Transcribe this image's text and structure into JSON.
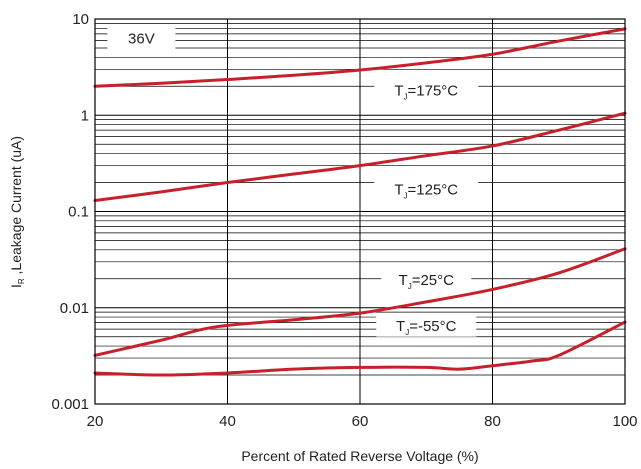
{
  "chart_data": {
    "type": "line",
    "title": "",
    "xlabel": "Percent of Rated Reverse Voltage (%)",
    "ylabel": {
      "main": "I",
      "sub": "R",
      "rest": " ,Leakage Current  (uA)"
    },
    "xlim": [
      20,
      100
    ],
    "ylim": [
      0.001,
      10
    ],
    "yscale": "log",
    "grid": true,
    "x_ticks": [
      20,
      40,
      60,
      80,
      100
    ],
    "x_tick_labels": [
      "20",
      "40",
      "60",
      "80",
      "100"
    ],
    "y_ticks": [
      0.001,
      0.01,
      0.1,
      1,
      10
    ],
    "y_tick_labels": [
      "0.001",
      "0.01",
      "0.1",
      "1",
      "10"
    ],
    "line_color": "#c8202a",
    "annotations": [
      {
        "key": "voltage",
        "text": "36V",
        "x": 27,
        "y": 6.3
      },
      {
        "key": "tj175",
        "main": "T",
        "sub": "J",
        "rest": "=175°C",
        "x": 70,
        "y": 1.8
      },
      {
        "key": "tj125",
        "main": "T",
        "sub": "J",
        "rest": "=125°C",
        "x": 70,
        "y": 0.17
      },
      {
        "key": "tj25",
        "main": "T",
        "sub": "J",
        "rest": "=25°C",
        "x": 70,
        "y": 0.0195
      },
      {
        "key": "tjm55",
        "main": "T",
        "sub": "J",
        "rest": "=-55°C",
        "x": 70,
        "y": 0.0065
      }
    ],
    "series": [
      {
        "key": "tj175",
        "x": [
          20,
          30,
          40,
          50,
          60,
          70,
          80,
          90,
          100
        ],
        "y": [
          2.0,
          2.15,
          2.35,
          2.6,
          2.95,
          3.5,
          4.3,
          5.9,
          7.9
        ]
      },
      {
        "key": "tj125",
        "x": [
          20,
          30,
          40,
          50,
          60,
          70,
          80,
          90,
          100
        ],
        "y": [
          0.13,
          0.16,
          0.2,
          0.245,
          0.3,
          0.38,
          0.48,
          0.7,
          1.05
        ]
      },
      {
        "key": "tj25",
        "x": [
          20,
          30,
          38,
          50,
          60,
          70,
          80,
          90,
          100
        ],
        "y": [
          0.0032,
          0.0046,
          0.0063,
          0.0075,
          0.0088,
          0.0115,
          0.0155,
          0.023,
          0.041
        ]
      },
      {
        "key": "tjm55",
        "x": [
          20,
          30,
          40,
          50,
          60,
          70,
          75,
          80,
          86,
          90,
          100
        ],
        "y": [
          0.0021,
          0.002,
          0.0021,
          0.0023,
          0.0024,
          0.0024,
          0.0023,
          0.0025,
          0.0028,
          0.0032,
          0.0071
        ]
      }
    ]
  }
}
